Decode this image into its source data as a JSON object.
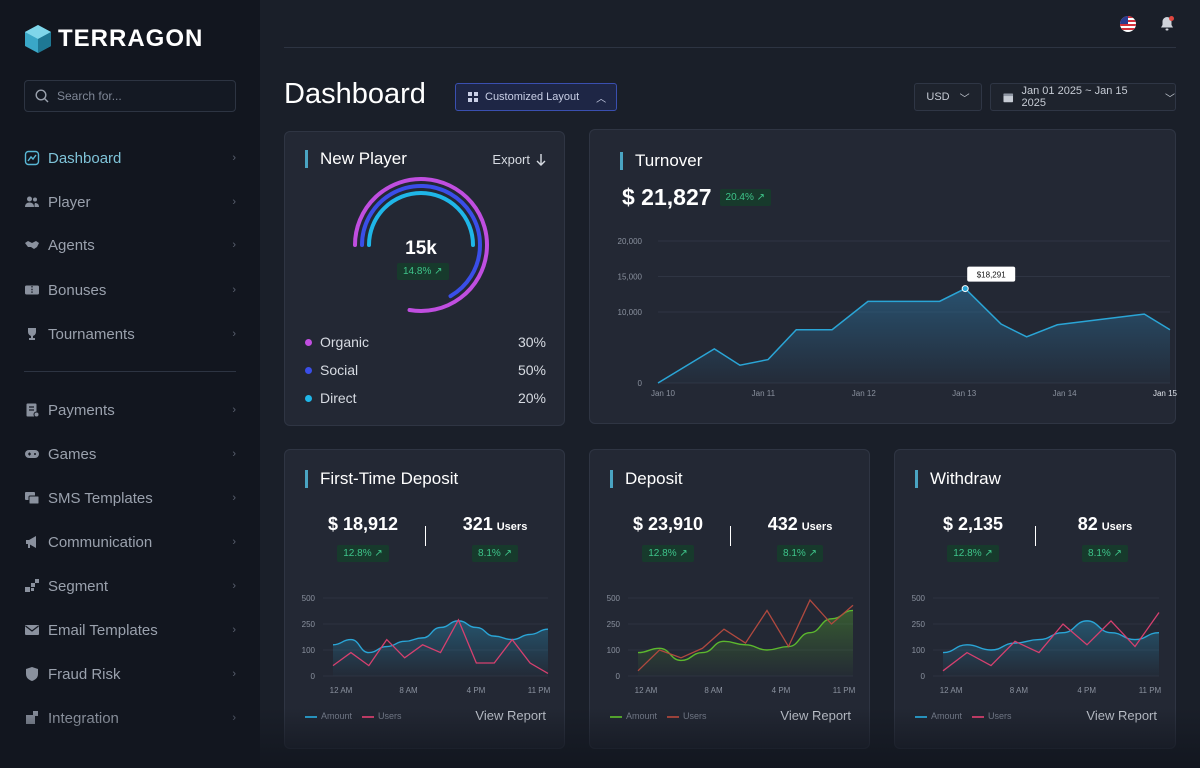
{
  "app": {
    "brand": "TERRAGON",
    "search_placeholder": "Search for..."
  },
  "sidebar": {
    "items": [
      {
        "label": "Dashboard",
        "icon": "chart-icon",
        "active": true
      },
      {
        "label": "Player",
        "icon": "users-icon"
      },
      {
        "label": "Agents",
        "icon": "handshake-icon"
      },
      {
        "label": "Bonuses",
        "icon": "ticket-icon"
      },
      {
        "label": "Tournaments",
        "icon": "trophy-icon"
      },
      {
        "label": "Payments",
        "icon": "receipt-icon"
      },
      {
        "label": "Games",
        "icon": "gamepad-icon"
      },
      {
        "label": "SMS Templates",
        "icon": "chat-icon"
      },
      {
        "label": "Communication",
        "icon": "megaphone-icon"
      },
      {
        "label": "Segment",
        "icon": "segment-icon"
      },
      {
        "label": "Email Templates",
        "icon": "mail-icon"
      },
      {
        "label": "Fraud Risk",
        "icon": "shield-icon"
      },
      {
        "label": "Integration",
        "icon": "puzzle-icon"
      }
    ]
  },
  "header": {
    "title": "Dashboard",
    "layout_button": "Customized Layout",
    "currency": "USD",
    "date_range": "Jan 01 2025 ~ Jan 15 2025"
  },
  "new_player": {
    "title": "New Player",
    "export_label": "Export",
    "total": "15k",
    "change": "14.8%",
    "segments": [
      {
        "label": "Organic",
        "value": "30%",
        "color": "#c04ee0"
      },
      {
        "label": "Social",
        "value": "50%",
        "color": "#3a4ee8"
      },
      {
        "label": "Direct",
        "value": "20%",
        "color": "#1fb6e8"
      }
    ]
  },
  "turnover": {
    "title": "Turnover",
    "amount": "$ 21,827",
    "change": "20.4%",
    "tooltip": "$18,291"
  },
  "small_cards": [
    {
      "title": "First-Time Deposit",
      "amount": "$ 18,912",
      "amount_change": "12.8%",
      "users_value": "321",
      "users_label": "Users",
      "users_change": "8.1%",
      "view_report": "View Report",
      "legend": [
        "Amount",
        "Users"
      ]
    },
    {
      "title": "Deposit",
      "amount": "$ 23,910",
      "amount_change": "12.8%",
      "users_value": "432",
      "users_label": "Users",
      "users_change": "8.1%",
      "view_report": "View Report",
      "legend": [
        "Amount",
        "Users"
      ]
    },
    {
      "title": "Withdraw",
      "amount": "$ 2,135",
      "amount_change": "12.8%",
      "users_value": "82",
      "users_label": "Users",
      "users_change": "8.1%",
      "view_report": "View Report",
      "legend": [
        "Amount",
        "Users"
      ]
    }
  ],
  "chart_data": [
    {
      "type": "area",
      "title": "Turnover",
      "x": [
        "Jan 10",
        "Jan 10.5",
        "Jan 10.8",
        "Jan 11",
        "Jan 11.3",
        "Jan 11.5",
        "Jan 12",
        "Jan 12.3",
        "Jan 12.8",
        "Jan 13",
        "Jan 13.2",
        "Jan 13.6",
        "Jan 14",
        "Jan 14.7",
        "Jan 15"
      ],
      "x_ticks": [
        "Jan 10",
        "Jan 11",
        "Jan 12",
        "Jan 13",
        "Jan 14",
        "Jan 15"
      ],
      "y_ticks": [
        "0",
        "10,000",
        "15,000",
        "20,000"
      ],
      "ylim": [
        0,
        20000
      ],
      "series": [
        {
          "values": [
            0,
            4800,
            2500,
            3300,
            7500,
            7500,
            11500,
            11500,
            11500,
            13300,
            8300,
            6500,
            8200,
            9700,
            7500
          ]
        }
      ],
      "annotation": "$18,291",
      "grid": true
    },
    {
      "type": "line",
      "title": "First-Time Deposit",
      "x_ticks": [
        "12 AM",
        "8 AM",
        "4 PM",
        "11 PM"
      ],
      "y_ticks": [
        "0",
        "100",
        "250",
        "500"
      ],
      "ylim": [
        0,
        500
      ],
      "series": [
        {
          "name": "Amount",
          "color": "#2aa5d6",
          "values": [
            130,
            160,
            90,
            120,
            150,
            170,
            230,
            280,
            230,
            180,
            160,
            190,
            220
          ]
        },
        {
          "name": "Users",
          "color": "#d6406f",
          "values": [
            40,
            90,
            40,
            160,
            70,
            130,
            90,
            290,
            50,
            50,
            160,
            50,
            10
          ]
        }
      ]
    },
    {
      "type": "line",
      "title": "Deposit",
      "x_ticks": [
        "12 AM",
        "8 AM",
        "4 PM",
        "11 PM"
      ],
      "y_ticks": [
        "0",
        "100",
        "250",
        "500"
      ],
      "ylim": [
        0,
        500
      ],
      "series": [
        {
          "name": "Amount",
          "color": "#5cb82e",
          "values": [
            90,
            110,
            60,
            90,
            150,
            130,
            100,
            120,
            200,
            300,
            380
          ]
        },
        {
          "name": "Users",
          "color": "#b0493f",
          "values": [
            20,
            100,
            70,
            110,
            220,
            140,
            380,
            120,
            480,
            250,
            430
          ]
        }
      ]
    },
    {
      "type": "line",
      "title": "Withdraw",
      "x_ticks": [
        "12 AM",
        "8 AM",
        "4 PM",
        "11 PM"
      ],
      "y_ticks": [
        "0",
        "100",
        "250",
        "500"
      ],
      "ylim": [
        0,
        500
      ],
      "series": [
        {
          "name": "Amount",
          "color": "#2aa5d6",
          "values": [
            90,
            130,
            100,
            140,
            160,
            200,
            280,
            200,
            160,
            200
          ]
        },
        {
          "name": "Users",
          "color": "#d6406f",
          "values": [
            20,
            90,
            40,
            150,
            90,
            250,
            130,
            280,
            120,
            360
          ]
        }
      ]
    }
  ]
}
